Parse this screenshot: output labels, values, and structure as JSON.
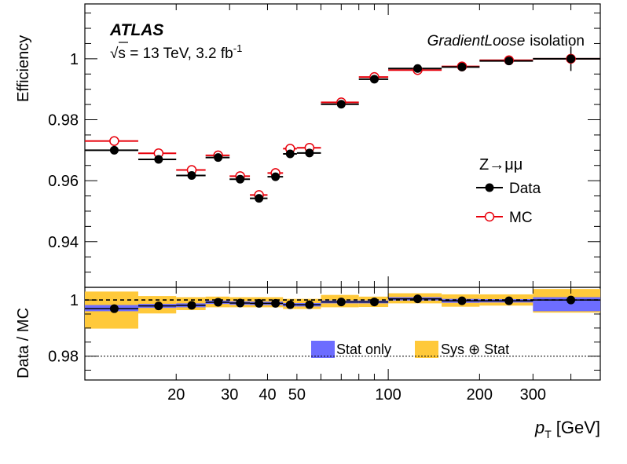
{
  "chart_data": [
    {
      "type": "scatter",
      "panel": "main",
      "ylabel": "Efficiency",
      "ylim": [
        0.925,
        1.018
      ],
      "yticks": [
        0.94,
        0.96,
        0.98,
        1
      ],
      "ytick_labels": [
        "0.94",
        "0.96",
        "0.98",
        "1"
      ],
      "xscale": "log",
      "xlim": [
        10,
        500
      ],
      "experiment": "ATLAS",
      "energy_label": "√s = 13 TeV, 3.2 fb",
      "energy_label_superscript": "-1",
      "isolation_label": "GradientLoose",
      "isolation_label_suffix": "isolation",
      "process_label": "Z→μμ",
      "legend": {
        "placement": "right",
        "entries": [
          "Data",
          "MC"
        ]
      },
      "bins": [
        [
          10,
          15
        ],
        [
          15,
          20
        ],
        [
          20,
          25
        ],
        [
          25,
          30
        ],
        [
          30,
          35
        ],
        [
          35,
          40
        ],
        [
          40,
          45
        ],
        [
          45,
          50
        ],
        [
          50,
          60
        ],
        [
          60,
          80
        ],
        [
          80,
          100
        ],
        [
          100,
          150
        ],
        [
          150,
          200
        ],
        [
          200,
          300
        ],
        [
          300,
          500
        ]
      ],
      "series": [
        {
          "name": "Data",
          "color": "#000000",
          "marker": "filled-circle",
          "x": [
            12.5,
            17.5,
            22.5,
            27.5,
            32.5,
            37.5,
            42.5,
            47.5,
            55,
            70,
            90,
            125,
            175,
            250,
            400
          ],
          "values": [
            0.97,
            0.967,
            0.9617,
            0.9676,
            0.9605,
            0.9542,
            0.9613,
            0.9688,
            0.9691,
            0.9851,
            0.9933,
            0.9968,
            0.9973,
            0.9993,
            1.0
          ],
          "y_err": [
            0.001,
            0.0008,
            0.0008,
            0.0008,
            0.0008,
            0.0008,
            0.0008,
            0.0008,
            0.0008,
            0.0006,
            0.0006,
            0.0006,
            0.001,
            0.001,
            0.004
          ]
        },
        {
          "name": "MC",
          "color": "#e8000b",
          "marker": "open-circle",
          "x": [
            12.5,
            17.5,
            22.5,
            27.5,
            32.5,
            37.5,
            42.5,
            47.5,
            55,
            70,
            90,
            125,
            175,
            250,
            400
          ],
          "values": [
            0.973,
            0.969,
            0.9635,
            0.9683,
            0.9615,
            0.9553,
            0.9625,
            0.9705,
            0.9708,
            0.9857,
            0.994,
            0.9963,
            0.9975,
            0.9995,
            1.0
          ]
        }
      ]
    },
    {
      "type": "scatter",
      "panel": "ratio",
      "ylabel": "Data / MC",
      "xlabel": "p",
      "xlabel_subscript": "T",
      "xlabel_unit": "[GeV]",
      "xscale": "log",
      "xlim": [
        10,
        500
      ],
      "xticks": [
        20,
        30,
        40,
        50,
        100,
        200,
        300
      ],
      "xtick_labels": [
        "20",
        "30",
        "40",
        "50",
        "100",
        "200",
        "300"
      ],
      "ylim": [
        0.9715,
        1.0045
      ],
      "yticks": [
        0.98,
        1
      ],
      "ytick_labels": [
        "0.98",
        "1"
      ],
      "reference_lines": [
        1.0,
        0.98
      ],
      "legend": {
        "placement": "bottom-right",
        "entries": [
          "Stat only",
          "Sys ⊕ Stat"
        ]
      },
      "band_colors": {
        "stat": "#6d6dff",
        "syst": "#ffc93a"
      },
      "series": [
        {
          "name": "Data",
          "color": "#000000",
          "marker": "filled-circle",
          "x": [
            12.5,
            17.5,
            22.5,
            27.5,
            32.5,
            37.5,
            42.5,
            47.5,
            55,
            70,
            90,
            125,
            175,
            250,
            400
          ],
          "values": [
            0.9969,
            0.9979,
            0.9981,
            0.9992,
            0.9989,
            0.9988,
            0.9988,
            0.9983,
            0.9983,
            0.9993,
            0.9993,
            1.0004,
            0.9997,
            0.9997,
            1.0
          ]
        }
      ],
      "stat_band": [
        [
          0.996,
          0.9982
        ],
        [
          0.9972,
          0.9986
        ],
        [
          0.9974,
          0.9988
        ],
        [
          0.9986,
          0.9998
        ],
        [
          0.9983,
          0.9995
        ],
        [
          0.9982,
          0.9994
        ],
        [
          0.9982,
          0.9994
        ],
        [
          0.9977,
          0.9989
        ],
        [
          0.9977,
          0.9989
        ],
        [
          0.9988,
          0.9998
        ],
        [
          0.9988,
          0.9998
        ],
        [
          0.9998,
          1.001
        ],
        [
          0.999,
          1.0004
        ],
        [
          0.9991,
          1.0003
        ],
        [
          0.996,
          1.001
        ]
      ],
      "syst_band": [
        [
          0.9898,
          1.003
        ],
        [
          0.9952,
          1.0014
        ],
        [
          0.9964,
          1.001
        ],
        [
          0.9974,
          1.0012
        ],
        [
          0.9974,
          1.001
        ],
        [
          0.9974,
          1.001
        ],
        [
          0.9974,
          1.001
        ],
        [
          0.9968,
          1.0004
        ],
        [
          0.9968,
          1.0004
        ],
        [
          0.9974,
          1.0018
        ],
        [
          0.9975,
          1.0012
        ],
        [
          0.9988,
          1.0024
        ],
        [
          0.9976,
          1.002
        ],
        [
          0.998,
          1.002
        ],
        [
          0.9955,
          1.0039
        ]
      ]
    }
  ]
}
